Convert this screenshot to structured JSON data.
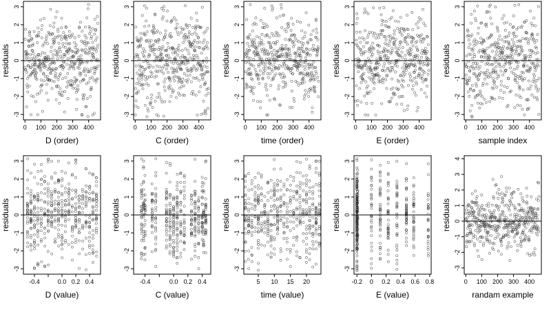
{
  "chart_data": [
    {
      "type": "scatter",
      "ylabel": "residuals",
      "xlabel": "D (order)",
      "xticks": [
        0,
        100,
        200,
        300,
        400
      ],
      "yticks": [
        -3,
        -2,
        -1,
        0,
        1,
        2,
        3
      ],
      "xlim": [
        -10,
        475
      ],
      "ylim": [
        -3.3,
        3.3
      ],
      "pattern": {
        "kind": "index",
        "n": 450
      },
      "zero_line": true
    },
    {
      "type": "scatter",
      "ylabel": "residuals",
      "xlabel": "C (order)",
      "xticks": [
        0,
        100,
        200,
        300,
        400
      ],
      "yticks": [
        -3,
        -2,
        -1,
        0,
        1,
        2,
        3
      ],
      "xlim": [
        -10,
        475
      ],
      "ylim": [
        -3.3,
        3.3
      ],
      "pattern": {
        "kind": "index",
        "n": 450
      },
      "zero_line": true
    },
    {
      "type": "scatter",
      "ylabel": "residuals",
      "xlabel": "time (order)",
      "xticks": [
        0,
        100,
        200,
        300,
        400
      ],
      "yticks": [
        -3,
        -2,
        -1,
        0,
        1,
        2,
        3
      ],
      "xlim": [
        -10,
        475
      ],
      "ylim": [
        -3.3,
        3.3
      ],
      "pattern": {
        "kind": "index",
        "n": 450
      },
      "zero_line": true
    },
    {
      "type": "scatter",
      "ylabel": "residuals",
      "xlabel": "E (order)",
      "xticks": [
        0,
        100,
        200,
        300,
        400
      ],
      "yticks": [
        -3,
        -2,
        -1,
        0,
        1,
        2,
        3
      ],
      "xlim": [
        -10,
        475
      ],
      "ylim": [
        -3.3,
        3.3
      ],
      "pattern": {
        "kind": "index",
        "n": 450
      },
      "zero_line": true
    },
    {
      "type": "scatter",
      "ylabel": "residuals",
      "xlabel": "sample index",
      "xticks": [
        0,
        100,
        200,
        300,
        400
      ],
      "yticks": [
        -3,
        -2,
        -1,
        0,
        1,
        2,
        3
      ],
      "xlim": [
        -10,
        475
      ],
      "ylim": [
        -3.3,
        3.3
      ],
      "pattern": {
        "kind": "index",
        "n": 450
      },
      "zero_line": true
    },
    {
      "type": "scatter",
      "ylabel": "residuals",
      "xlabel": "D (value)",
      "xticks": [
        -0.4,
        -0.2,
        0.0,
        0.2,
        0.4
      ],
      "xticklabels": [
        "-0.4",
        "",
        "0.0",
        "0.2",
        "0.4"
      ],
      "yticks": [
        -3,
        -2,
        -1,
        0,
        1,
        2,
        3
      ],
      "xlim": [
        -0.56,
        0.56
      ],
      "ylim": [
        -3.3,
        3.3
      ],
      "pattern": {
        "kind": "levels",
        "levels": [
          -0.5,
          -0.45,
          -0.4,
          -0.35,
          -0.3,
          -0.25,
          -0.2,
          -0.15,
          -0.1,
          -0.05,
          0.0,
          0.05,
          0.1,
          0.15,
          0.2,
          0.25,
          0.3,
          0.35,
          0.4,
          0.45,
          0.5
        ],
        "n": 450
      },
      "zero_line": true
    },
    {
      "type": "scatter",
      "ylabel": "residuals",
      "xlabel": "C (value)",
      "xticks": [
        -0.4,
        -0.2,
        0.0,
        0.2,
        0.4
      ],
      "xticklabels": [
        "-0.4",
        "",
        "0.0",
        "0.2",
        "0.4"
      ],
      "yticks": [
        -3,
        -2,
        -1,
        0,
        1,
        2,
        3
      ],
      "xlim": [
        -0.56,
        0.52
      ],
      "ylim": [
        -3.3,
        3.3
      ],
      "pattern": {
        "kind": "levels",
        "levels": [
          -0.45,
          -0.42,
          -0.4,
          -0.3,
          -0.25,
          -0.1,
          -0.05,
          0.0,
          0.05,
          0.1,
          0.15,
          0.25,
          0.3,
          0.35,
          0.4,
          0.42,
          0.45
        ],
        "n": 450
      },
      "zero_line": true
    },
    {
      "type": "scatter",
      "ylabel": "residuals",
      "xlabel": "time (value)",
      "xticks": [
        5,
        10,
        15,
        20
      ],
      "yticks": [
        -3,
        -2,
        -1,
        0,
        1,
        2,
        3
      ],
      "xlim": [
        0.5,
        24.5
      ],
      "ylim": [
        -3.3,
        3.3
      ],
      "pattern": {
        "kind": "levels",
        "levels": [
          1,
          2,
          3,
          4,
          5,
          6,
          7,
          8,
          9,
          10,
          11,
          12,
          13,
          14,
          15,
          16,
          17,
          18,
          19,
          20,
          21,
          22,
          23,
          24
        ],
        "n": 450
      },
      "zero_line": true
    },
    {
      "type": "scatter",
      "ylabel": "residuals",
      "xlabel": "E (value)",
      "xticks": [
        -0.2,
        0.0,
        0.2,
        0.4,
        0.6,
        0.8
      ],
      "yticks": [
        -3,
        -2,
        -1,
        0,
        1,
        2,
        3
      ],
      "xlim": [
        -0.24,
        0.82
      ],
      "ylim": [
        -3.3,
        3.3
      ],
      "pattern": {
        "kind": "levels",
        "levels": [
          -0.2,
          -0.2,
          -0.2,
          -0.2,
          -0.2,
          -0.19,
          0.0,
          0.12,
          0.23,
          0.35,
          0.48,
          0.58,
          0.78
        ],
        "n": 450
      },
      "zero_line": true
    },
    {
      "type": "scatter",
      "ylabel": "residuals",
      "xlabel": "randam example",
      "xticks": [
        0,
        100,
        200,
        300,
        400
      ],
      "yticks": [
        -3,
        -2,
        -1,
        0,
        1,
        2,
        3,
        4
      ],
      "xlim": [
        -10,
        475
      ],
      "ylim": [
        -3.4,
        4.2
      ],
      "pattern": {
        "kind": "index",
        "n": 450,
        "sd": 0.9
      },
      "zero_line": true
    }
  ]
}
